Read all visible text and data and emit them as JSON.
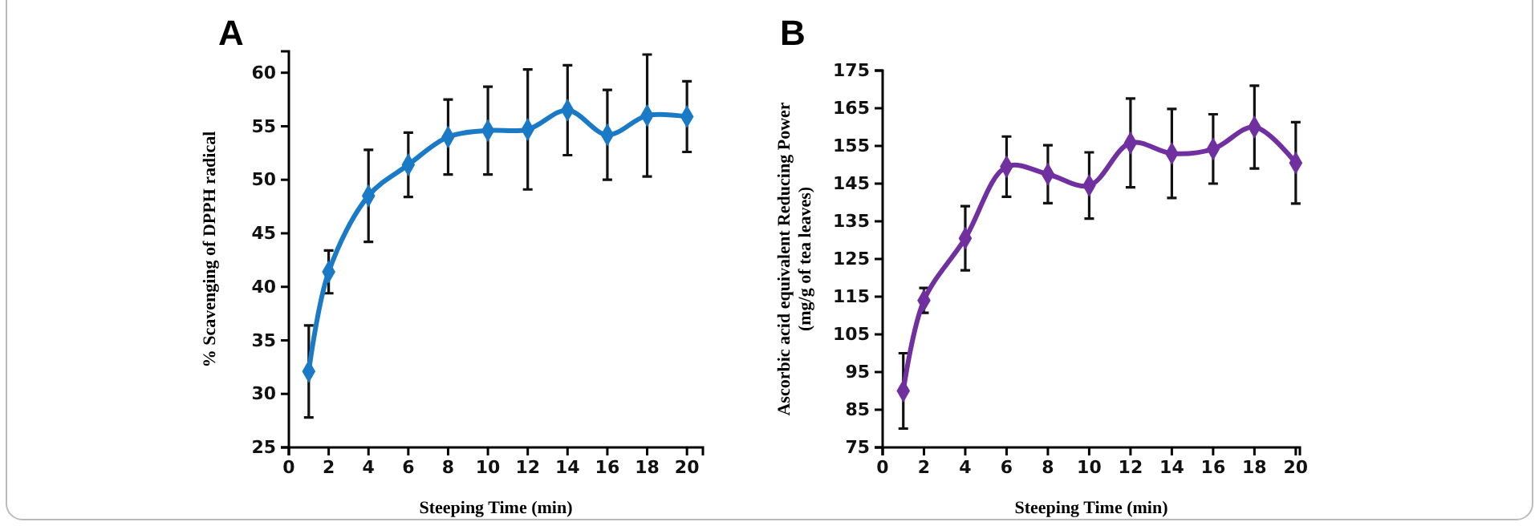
{
  "chart_data": [
    {
      "type": "line",
      "title": "A",
      "xlabel": "Steeping Time (min)",
      "ylabel": "% Scavenging of DPPH radical",
      "x": [
        1,
        2,
        4,
        6,
        8,
        10,
        12,
        14,
        16,
        18,
        20
      ],
      "xlim": [
        0,
        20.8
      ],
      "xticks": [
        0,
        2,
        4,
        6,
        8,
        10,
        12,
        14,
        16,
        18,
        20
      ],
      "ylim": [
        25,
        62
      ],
      "yticks": [
        25,
        30,
        35,
        40,
        45,
        50,
        55,
        60
      ],
      "marker": "diamond",
      "line_style": "solid",
      "grid": false,
      "series": [
        {
          "color": "#1a7ac6",
          "values": [
            32.1,
            41.4,
            48.5,
            51.4,
            54.0,
            54.6,
            54.7,
            56.5,
            54.2,
            56.0,
            55.9
          ],
          "errors": [
            4.3,
            2.0,
            4.3,
            3.0,
            3.5,
            4.1,
            5.6,
            4.2,
            4.2,
            5.7,
            3.3
          ]
        }
      ]
    },
    {
      "type": "line",
      "title": "B",
      "xlabel": "Steeping Time (min)",
      "ylabel": "Ascorbic acid equivalent Reducing Power (mg/g of tea leaves)",
      "x": [
        1,
        2,
        4,
        6,
        8,
        10,
        12,
        14,
        16,
        18,
        20
      ],
      "xlim": [
        0,
        20.2
      ],
      "xticks": [
        0,
        2,
        4,
        6,
        8,
        10,
        12,
        14,
        16,
        18,
        20
      ],
      "ylim": [
        75,
        175
      ],
      "yticks": [
        75,
        85,
        95,
        105,
        115,
        125,
        135,
        145,
        155,
        165,
        175
      ],
      "marker": "diamond",
      "line_style": "solid",
      "grid": false,
      "series": [
        {
          "color": "#7030a0",
          "values": [
            90,
            114,
            130.5,
            149.5,
            147.5,
            144.5,
            155.8,
            153,
            154.2,
            160,
            150.5
          ],
          "errors": [
            10,
            3.3,
            8.5,
            8,
            7.7,
            8.8,
            11.8,
            11.8,
            9.2,
            11,
            10.8
          ]
        }
      ]
    }
  ]
}
